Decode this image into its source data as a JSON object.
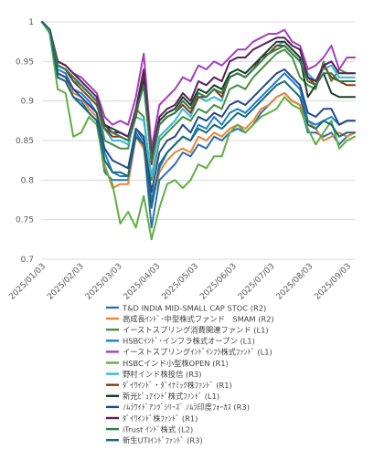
{
  "chart_data": {
    "type": "line",
    "xlabels": [
      "2025/01/03",
      "2025/02/03",
      "2025/03/03",
      "2025/04/03",
      "2025/05/03",
      "2025/06/03",
      "2025/07/03",
      "2025/08/03",
      "2025/09/03"
    ],
    "yticks": [
      "1",
      "0.95",
      "0.9",
      "0.85",
      "0.8",
      "0.75",
      "0.7"
    ],
    "ylim": [
      0.7,
      1.0
    ],
    "grid": "horizontal",
    "legend_position": "bottom",
    "series": [
      {
        "name": "T&D INDIA MID-SMALL CAP STOC (R2)",
        "color": "#2f6fae",
        "values": [
          1.0,
          0.99,
          0.93,
          0.925,
          0.905,
          0.9,
          0.885,
          0.875,
          0.81,
          0.8,
          0.8,
          0.8,
          0.86,
          0.845,
          0.74,
          0.8,
          0.81,
          0.82,
          0.835,
          0.83,
          0.845,
          0.84,
          0.855,
          0.85,
          0.86,
          0.865,
          0.86,
          0.87,
          0.885,
          0.895,
          0.905,
          0.91,
          0.9,
          0.895,
          0.86,
          0.86,
          0.855,
          0.86,
          0.845,
          0.855,
          0.86
        ]
      },
      {
        "name": "高成長ｲﾝﾄﾞ･中型株式ファンド　SMAM (R2)",
        "color": "#e8853a",
        "values": [
          1.0,
          0.99,
          0.935,
          0.93,
          0.91,
          0.905,
          0.89,
          0.88,
          0.82,
          0.79,
          0.795,
          0.795,
          0.855,
          0.84,
          0.77,
          0.81,
          0.825,
          0.835,
          0.84,
          0.835,
          0.855,
          0.85,
          0.86,
          0.855,
          0.865,
          0.87,
          0.865,
          0.875,
          0.89,
          0.895,
          0.905,
          0.91,
          0.9,
          0.895,
          0.875,
          0.865,
          0.85,
          0.855,
          0.86,
          0.855,
          0.86
        ]
      },
      {
        "name": "イーストスプリング消費関連ファンド (L1)",
        "color": "#4a8f46",
        "values": [
          1.0,
          0.99,
          0.945,
          0.94,
          0.925,
          0.92,
          0.91,
          0.9,
          0.85,
          0.845,
          0.84,
          0.84,
          0.89,
          0.88,
          0.8,
          0.85,
          0.86,
          0.87,
          0.88,
          0.875,
          0.89,
          0.885,
          0.895,
          0.89,
          0.915,
          0.92,
          0.915,
          0.93,
          0.94,
          0.95,
          0.96,
          0.965,
          0.955,
          0.93,
          0.92,
          0.915,
          0.95,
          0.925,
          0.94,
          0.935,
          0.935
        ]
      },
      {
        "name": "HSBCｲﾝﾄﾞ･インフラ株式オープン (L1)",
        "color": "#1f80c8",
        "values": [
          1.0,
          0.99,
          0.94,
          0.935,
          0.915,
          0.91,
          0.9,
          0.885,
          0.835,
          0.81,
          0.805,
          0.805,
          0.865,
          0.85,
          0.775,
          0.815,
          0.835,
          0.845,
          0.855,
          0.85,
          0.87,
          0.865,
          0.88,
          0.87,
          0.885,
          0.89,
          0.885,
          0.895,
          0.905,
          0.915,
          0.925,
          0.935,
          0.925,
          0.915,
          0.875,
          0.87,
          0.875,
          0.88,
          0.87,
          0.875,
          0.875
        ]
      },
      {
        "name": "イーストスプリングｲﾝﾄﾞｲﾝﾌﾗ株式ﾌｧﾝﾄﾞ (L1)",
        "color": "#a63dbd",
        "values": [
          1.0,
          0.99,
          0.95,
          0.945,
          0.935,
          0.93,
          0.92,
          0.91,
          0.88,
          0.87,
          0.875,
          0.87,
          0.905,
          0.96,
          0.84,
          0.895,
          0.905,
          0.915,
          0.93,
          0.925,
          0.945,
          0.94,
          0.95,
          0.945,
          0.955,
          0.965,
          0.965,
          0.975,
          0.98,
          0.985,
          0.985,
          0.99,
          0.975,
          0.97,
          0.94,
          0.945,
          0.955,
          0.97,
          0.94,
          0.955,
          0.955
        ]
      },
      {
        "name": "HSBCインド小型株OPEN (R1)",
        "color": "#5fb040",
        "values": [
          1.0,
          0.985,
          0.915,
          0.91,
          0.855,
          0.86,
          0.88,
          0.87,
          0.815,
          0.795,
          0.745,
          0.76,
          0.74,
          0.78,
          0.725,
          0.765,
          0.795,
          0.8,
          0.79,
          0.8,
          0.82,
          0.815,
          0.83,
          0.83,
          0.86,
          0.87,
          0.86,
          0.87,
          0.88,
          0.885,
          0.89,
          0.905,
          0.895,
          0.89,
          0.865,
          0.845,
          0.86,
          0.875,
          0.84,
          0.85,
          0.855
        ]
      },
      {
        "name": "野村インド株投信 (R3)",
        "color": "#3ab8d8",
        "values": [
          1.0,
          0.99,
          0.945,
          0.94,
          0.925,
          0.92,
          0.91,
          0.9,
          0.865,
          0.85,
          0.85,
          0.845,
          0.88,
          0.875,
          0.805,
          0.855,
          0.865,
          0.875,
          0.89,
          0.88,
          0.905,
          0.9,
          0.905,
          0.9,
          0.935,
          0.94,
          0.935,
          0.945,
          0.955,
          0.96,
          0.97,
          0.975,
          0.965,
          0.955,
          0.935,
          0.925,
          0.94,
          0.945,
          0.93,
          0.93,
          0.93
        ]
      },
      {
        "name": "ﾀﾞｲﾜｲﾝﾄﾞ・ﾀﾞｲﾅﾐｯｸ株ﾌｧﾝﾄﾞ (R1)",
        "color": "#8a3b1a",
        "values": [
          1.0,
          0.99,
          0.945,
          0.94,
          0.925,
          0.915,
          0.905,
          0.895,
          0.865,
          0.855,
          0.855,
          0.85,
          0.88,
          0.93,
          0.82,
          0.87,
          0.88,
          0.885,
          0.895,
          0.885,
          0.905,
          0.905,
          0.915,
          0.905,
          0.93,
          0.935,
          0.93,
          0.94,
          0.955,
          0.96,
          0.97,
          0.97,
          0.96,
          0.95,
          0.93,
          0.92,
          0.945,
          0.93,
          0.925,
          0.92,
          0.92
        ]
      },
      {
        "name": "新光ﾋﾟｭｱｲﾝﾄﾞ株式ﾌｧﾝﾄﾞ (L1)",
        "color": "#1d3f26",
        "values": [
          1.0,
          0.99,
          0.945,
          0.94,
          0.93,
          0.92,
          0.91,
          0.9,
          0.87,
          0.865,
          0.86,
          0.855,
          0.885,
          0.925,
          0.83,
          0.875,
          0.885,
          0.89,
          0.905,
          0.895,
          0.915,
          0.91,
          0.92,
          0.915,
          0.935,
          0.94,
          0.935,
          0.945,
          0.955,
          0.965,
          0.975,
          0.975,
          0.965,
          0.955,
          0.905,
          0.92,
          0.935,
          0.91,
          0.905,
          0.905,
          0.905
        ]
      },
      {
        "name": "ﾉﾑﾗﾜｲﾄﾞｱﾝﾂﾞｼﾘｰｽﾞ ﾉﾑﾗ印度ﾌｫｰｶｽ (R3)",
        "color": "#244b8a",
        "values": [
          1.0,
          0.99,
          0.935,
          0.93,
          0.915,
          0.905,
          0.895,
          0.885,
          0.84,
          0.825,
          0.82,
          0.815,
          0.865,
          0.855,
          0.785,
          0.835,
          0.85,
          0.855,
          0.87,
          0.86,
          0.88,
          0.875,
          0.885,
          0.88,
          0.895,
          0.9,
          0.895,
          0.905,
          0.915,
          0.925,
          0.935,
          0.94,
          0.93,
          0.92,
          0.885,
          0.88,
          0.89,
          0.89,
          0.87,
          0.875,
          0.875
        ]
      },
      {
        "name": "ﾀﾞｲﾜｲﾝﾄﾞ株ﾌｧﾝﾄﾞ (R1)",
        "color": "#5a1f5a",
        "values": [
          1.0,
          0.99,
          0.95,
          0.945,
          0.935,
          0.925,
          0.915,
          0.905,
          0.87,
          0.86,
          0.86,
          0.855,
          0.89,
          0.94,
          0.83,
          0.88,
          0.89,
          0.895,
          0.91,
          0.9,
          0.925,
          0.92,
          0.93,
          0.925,
          0.95,
          0.955,
          0.955,
          0.965,
          0.97,
          0.975,
          0.98,
          0.98,
          0.97,
          0.965,
          0.93,
          0.925,
          0.945,
          0.95,
          0.935,
          0.935,
          0.935
        ]
      },
      {
        "name": "iTrust ｲﾝﾄﾞ株式 (L2)",
        "color": "#2e7d4a",
        "values": [
          1.0,
          0.99,
          0.945,
          0.94,
          0.93,
          0.92,
          0.91,
          0.9,
          0.865,
          0.86,
          0.855,
          0.85,
          0.885,
          0.92,
          0.825,
          0.87,
          0.88,
          0.885,
          0.9,
          0.89,
          0.91,
          0.905,
          0.915,
          0.91,
          0.93,
          0.935,
          0.93,
          0.94,
          0.95,
          0.96,
          0.965,
          0.97,
          0.96,
          0.95,
          0.925,
          0.92,
          0.935,
          0.935,
          0.925,
          0.925,
          0.925
        ]
      },
      {
        "name": "新生UTIｲﾝﾄﾞﾌｧﾝﾄﾞ (R3)",
        "color": "#1a6a78",
        "values": [
          1.0,
          0.99,
          0.93,
          0.925,
          0.905,
          0.895,
          0.885,
          0.875,
          0.825,
          0.81,
          0.81,
          0.805,
          0.855,
          0.845,
          0.765,
          0.82,
          0.835,
          0.845,
          0.855,
          0.85,
          0.865,
          0.86,
          0.87,
          0.865,
          0.875,
          0.885,
          0.88,
          0.89,
          0.9,
          0.91,
          0.92,
          0.925,
          0.915,
          0.905,
          0.87,
          0.865,
          0.875,
          0.87,
          0.855,
          0.86,
          0.86
        ]
      }
    ]
  }
}
